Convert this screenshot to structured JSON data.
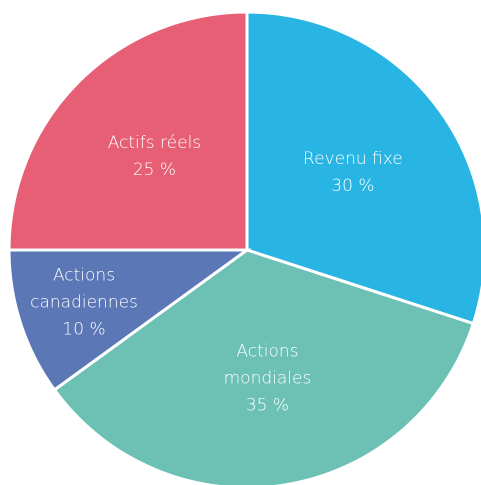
{
  "chart_data": {
    "type": "pie",
    "categories": [
      "Revenu fixe",
      "Actions\nmondiales",
      "Actions\ncanadiennes",
      "Actifs réels"
    ],
    "values": [
      30,
      35,
      10,
      25
    ],
    "value_labels": [
      "30 %",
      "35 %",
      "10 %",
      "25 %"
    ],
    "colors": [
      "#29b5e3",
      "#6cc1b4",
      "#5b77b6",
      "#e65f74"
    ]
  }
}
